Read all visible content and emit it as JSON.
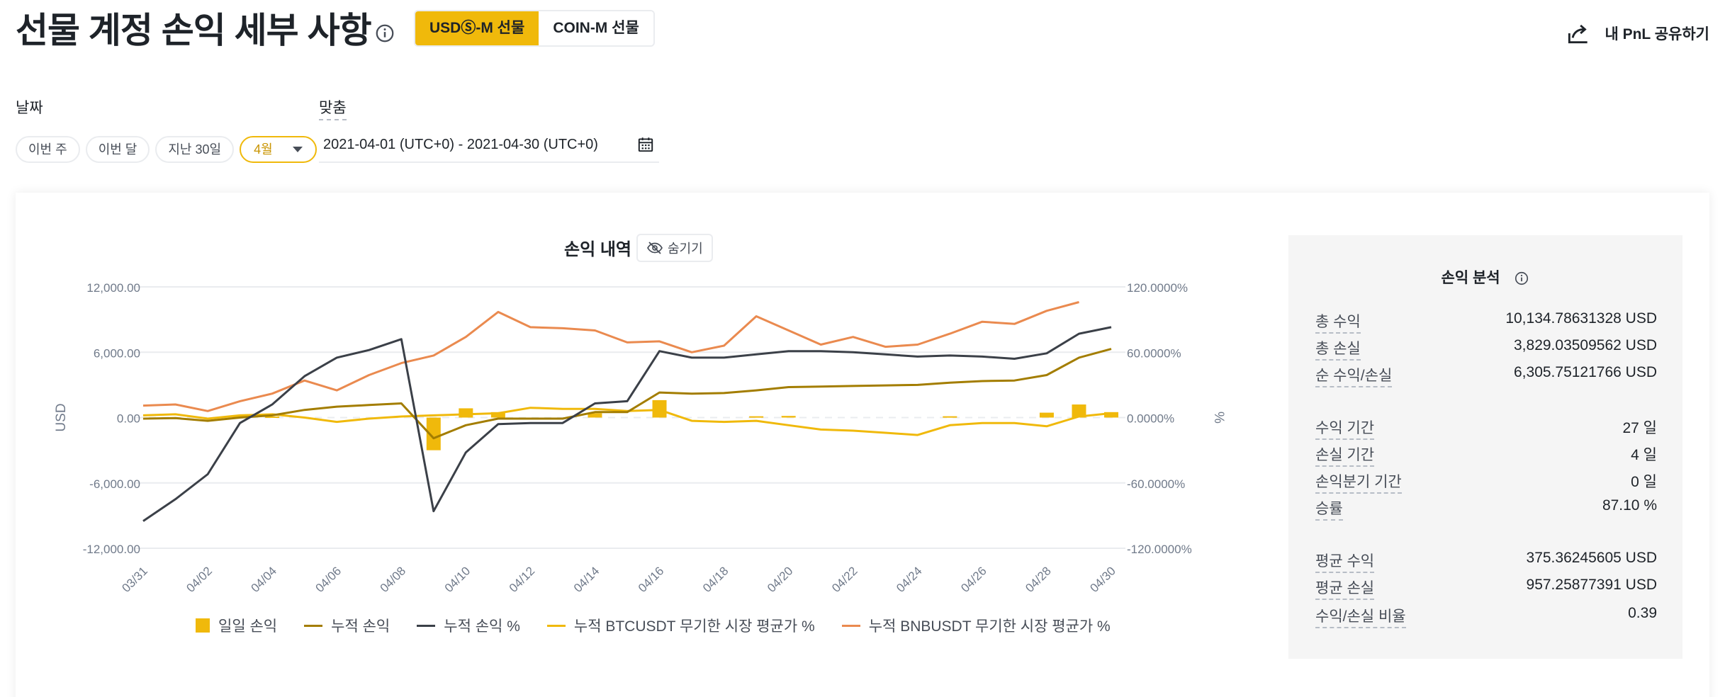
{
  "header": {
    "title": "선물 계정 손익 세부 사항",
    "product_tabs": [
      "USDⓈ-M 선물",
      "COIN-M 선물"
    ],
    "share_label": "내 PnL 공유하기"
  },
  "filters": {
    "date_label": "날짜",
    "custom_label": "맞춤",
    "quick_ranges": [
      "이번 주",
      "이번 달",
      "지난 30일"
    ],
    "month_value": "4월",
    "date_range": "2021-04-01 (UTC+0) - 2021-04-30 (UTC+0)"
  },
  "chart_section": {
    "title": "손익 내역",
    "hide_label": "숨기기"
  },
  "colors": {
    "accent": "#f0b90b",
    "cum_pnl": "#a37d00",
    "cum_pnl_pct": "#3b4048",
    "btc": "#f0b90b",
    "bnb": "#ea8a4f",
    "grid": "#eaecef"
  },
  "chart_data": {
    "type": "line",
    "title": "손익 내역",
    "xlabel": "",
    "ylabel": "USD",
    "y2label": "%",
    "ylim": [
      -12000,
      12000
    ],
    "y2lim": [
      -120,
      120
    ],
    "yticks": [
      "12,000.00",
      "6,000.00",
      "0.00",
      "-6,000.00",
      "-12,000.00"
    ],
    "y2ticks": [
      "120.0000%",
      "60.0000%",
      "0.0000%",
      "-60.0000%",
      "-120.0000%"
    ],
    "x": [
      "03/31",
      "04/01",
      "04/02",
      "04/03",
      "04/04",
      "04/05",
      "04/06",
      "04/07",
      "04/08",
      "04/09",
      "04/10",
      "04/11",
      "04/12",
      "04/13",
      "04/14",
      "04/15",
      "04/16",
      "04/17",
      "04/18",
      "04/19",
      "04/20",
      "04/21",
      "04/22",
      "04/23",
      "04/24",
      "04/25",
      "04/26",
      "04/27",
      "04/28",
      "04/29",
      "04/30"
    ],
    "xtick_labels": [
      "03/31",
      "04/02",
      "04/04",
      "04/06",
      "04/08",
      "04/10",
      "04/12",
      "04/14",
      "04/16",
      "04/18",
      "04/20",
      "04/22",
      "04/24",
      "04/26",
      "04/28",
      "04/30"
    ],
    "series": [
      {
        "name": "일일 손익",
        "kind": "bar",
        "axis": "left",
        "values": [
          0,
          0,
          0,
          230,
          100,
          0,
          0,
          0,
          0,
          -3000,
          850,
          500,
          0,
          0,
          400,
          0,
          1600,
          0,
          0,
          120,
          150,
          0,
          0,
          0,
          0,
          120,
          0,
          0,
          450,
          1200,
          500
        ]
      },
      {
        "name": "누적 손익",
        "kind": "line",
        "axis": "left",
        "values": [
          -100,
          -50,
          -300,
          0,
          200,
          700,
          1000,
          1150,
          1300,
          -1900,
          -700,
          -100,
          -100,
          -100,
          500,
          500,
          2300,
          2200,
          2250,
          2500,
          2800,
          2850,
          2900,
          2950,
          3000,
          3200,
          3350,
          3400,
          3900,
          5500,
          6300
        ]
      },
      {
        "name": "누적 손익 %",
        "kind": "line",
        "axis": "right",
        "values": [
          -95,
          -75,
          -52,
          -5,
          12,
          38,
          55,
          62,
          72,
          -86,
          -32,
          -6,
          -5,
          -5,
          13,
          15,
          61,
          55,
          55,
          58,
          61,
          61,
          60,
          58,
          56,
          57,
          56,
          54,
          59,
          77,
          83
        ]
      },
      {
        "name": "누적 BTCUSDT 무기한 시장 평균가 %",
        "kind": "line",
        "axis": "right",
        "values": [
          2,
          3,
          -1,
          2,
          3,
          0,
          -4,
          -1,
          1,
          2,
          3,
          4,
          9,
          8,
          8,
          6,
          7,
          -3,
          -4,
          -3,
          -7,
          -11,
          -12,
          -14,
          -16,
          -7,
          -5,
          -5,
          -8,
          1,
          4
        ]
      },
      {
        "name": "누적 BNBUSDT 무기한 시장 평균가 %",
        "kind": "line",
        "axis": "right",
        "values": [
          11,
          12,
          6,
          15,
          22,
          34,
          25,
          39,
          50,
          57,
          74,
          97,
          83,
          82,
          80,
          69,
          70,
          60,
          66,
          93,
          80,
          67,
          74,
          65,
          67,
          77,
          88,
          86,
          98,
          106,
          null
        ]
      }
    ]
  },
  "analysis": {
    "title": "손익 분석",
    "rows1": [
      {
        "label": "총 수익",
        "value": "10,134.78631328 USD"
      },
      {
        "label": "총 손실",
        "value": "3,829.03509562 USD"
      },
      {
        "label": "순 수익/손실",
        "value": "6,305.75121766 USD"
      }
    ],
    "rows2": [
      {
        "label": "수익 기간",
        "value": "27 일"
      },
      {
        "label": "손실 기간",
        "value": "4 일"
      },
      {
        "label": "손익분기 기간",
        "value": "0 일"
      },
      {
        "label": "승률",
        "value": "87.10 %"
      }
    ],
    "rows3": [
      {
        "label": "평균 수익",
        "value": "375.36245605 USD"
      },
      {
        "label": "평균 손실",
        "value": "957.25877391 USD"
      },
      {
        "label": "수익/손실 비율",
        "value": "0.39"
      }
    ]
  }
}
